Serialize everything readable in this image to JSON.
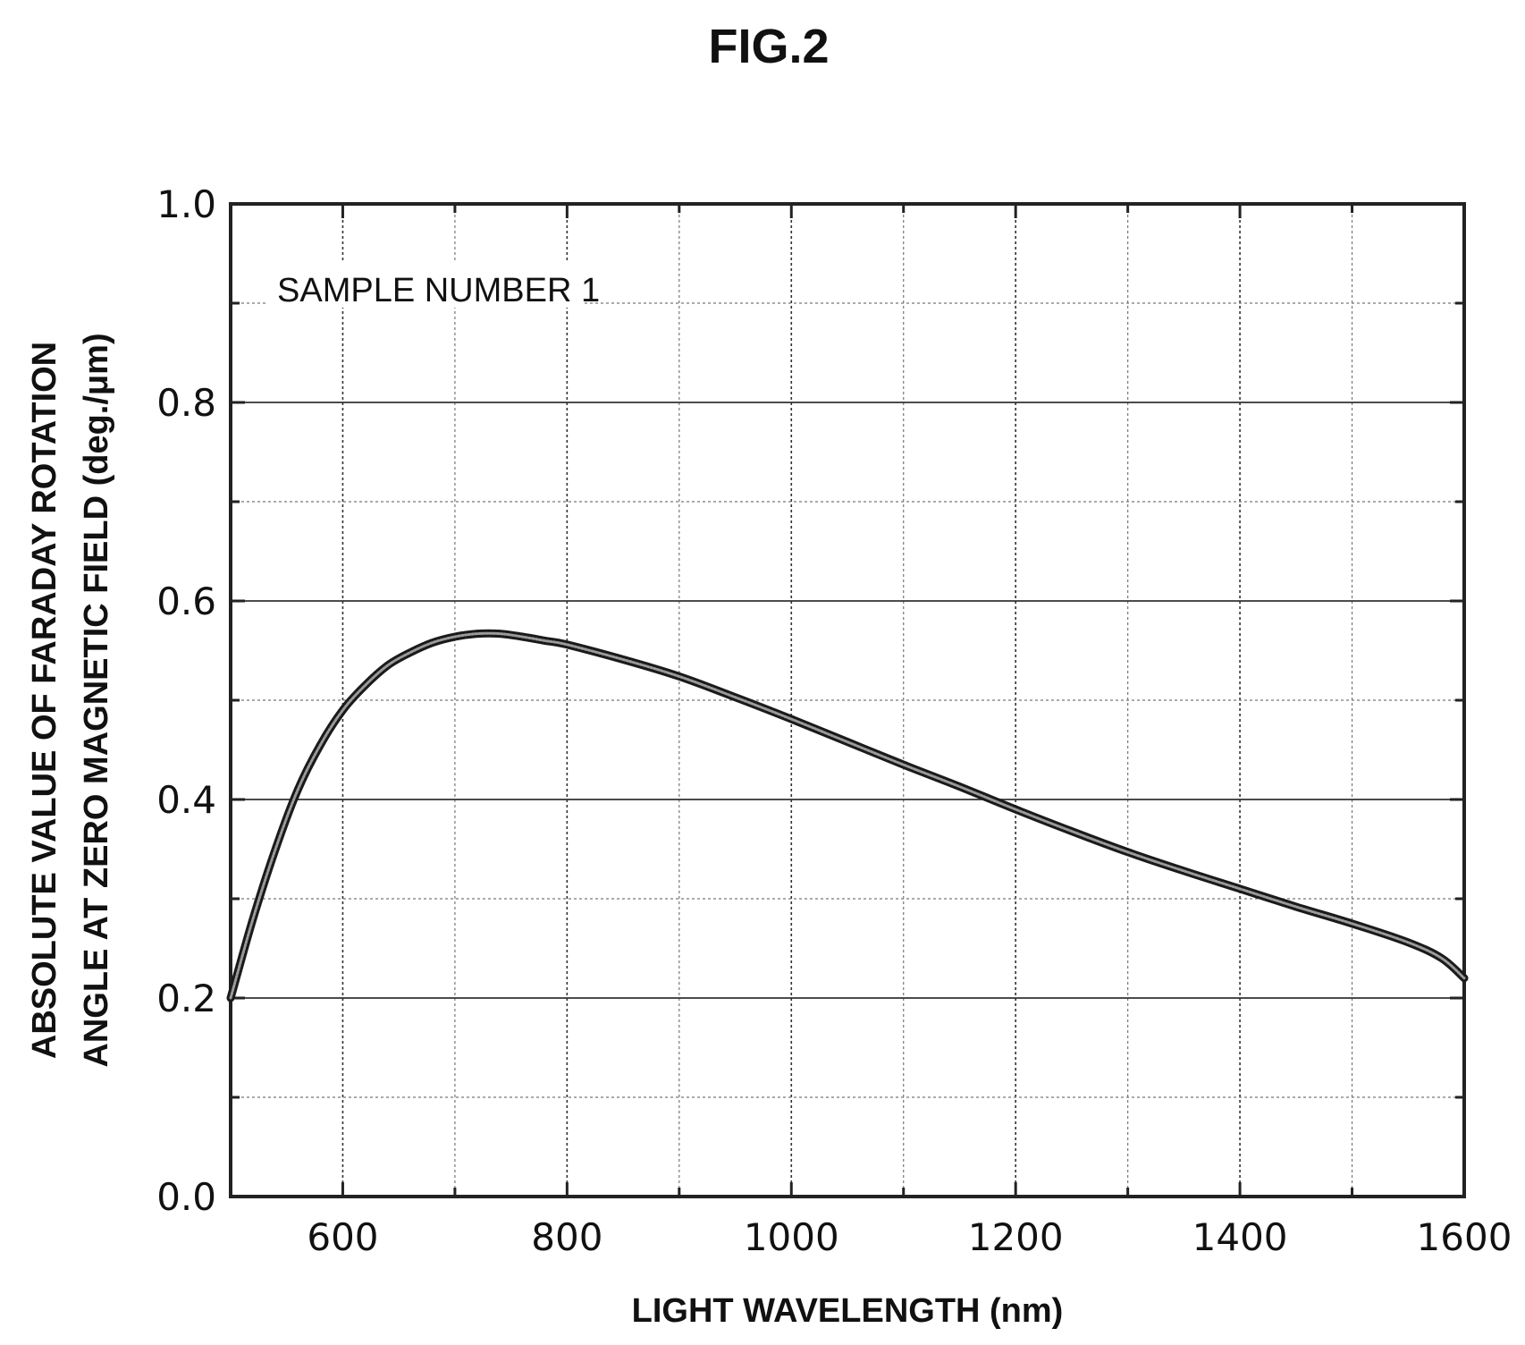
{
  "figure": {
    "title": "FIG.2"
  },
  "chart_data": {
    "type": "line",
    "title": "FIG.2",
    "xlabel": "LIGHT WAVELENGTH (nm)",
    "ylabel_line1": "ABSOLUTE VALUE OF FARADAY ROTATION",
    "ylabel_line2": "ANGLE AT ZERO MAGNETIC FIELD (deg./μm)",
    "xlim": [
      500,
      1600
    ],
    "ylim": [
      0.0,
      1.0
    ],
    "x_ticks": [
      600,
      800,
      1000,
      1200,
      1400,
      1600
    ],
    "x_tick_labels": [
      "600",
      "800",
      "1000",
      "1200",
      "1400",
      "1600"
    ],
    "x_minor_ticks": [
      500,
      700,
      900,
      1100,
      1300,
      1500
    ],
    "y_ticks": [
      0.0,
      0.2,
      0.4,
      0.6,
      0.8,
      1.0
    ],
    "y_tick_labels": [
      "0.0",
      "0.2",
      "0.4",
      "0.6",
      "0.8",
      "1.0"
    ],
    "y_minor_ticks": [
      0.1,
      0.3,
      0.5,
      0.7,
      0.9
    ],
    "grid": true,
    "annotation": "SAMPLE NUMBER 1",
    "series": [
      {
        "x": [
          500,
          520,
          540,
          560,
          580,
          600,
          620,
          640,
          660,
          680,
          700,
          720,
          740,
          760,
          780,
          800,
          850,
          900,
          950,
          1000,
          1050,
          1100,
          1150,
          1200,
          1250,
          1300,
          1350,
          1400,
          1450,
          1500,
          1550,
          1580,
          1600
        ],
        "y": [
          0.2,
          0.28,
          0.35,
          0.41,
          0.455,
          0.49,
          0.515,
          0.535,
          0.548,
          0.558,
          0.564,
          0.567,
          0.567,
          0.564,
          0.56,
          0.556,
          0.541,
          0.524,
          0.503,
          0.481,
          0.458,
          0.435,
          0.413,
          0.39,
          0.368,
          0.347,
          0.328,
          0.31,
          0.292,
          0.275,
          0.256,
          0.24,
          0.22
        ]
      }
    ]
  }
}
